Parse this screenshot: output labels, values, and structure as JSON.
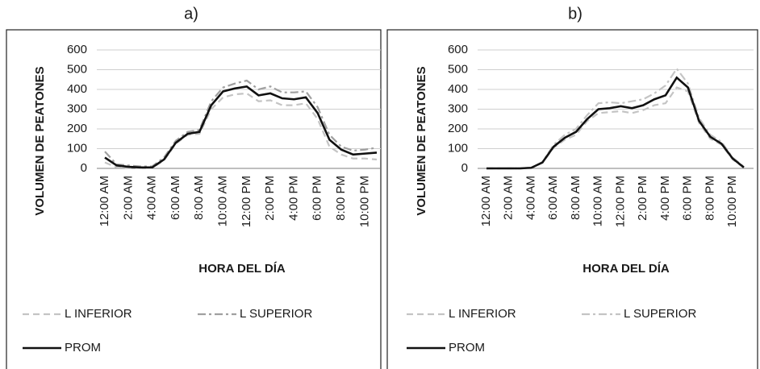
{
  "chart_data": [
    {
      "type": "line",
      "title": "a)",
      "x_label": "HORA DEL DÍA",
      "y_label": "VOLUMEN DE PEATONES",
      "categories": [
        "12:00 AM",
        null,
        "2:00 AM",
        null,
        "4:00 AM",
        null,
        "6:00 AM",
        null,
        "8:00 AM",
        null,
        "10:00 AM",
        null,
        "12:00 PM",
        null,
        "2:00 PM",
        null,
        "4:00 PM",
        null,
        "6:00 PM",
        null,
        "8:00 PM",
        null,
        "10:00 PM",
        null
      ],
      "series": [
        {
          "name": "L INFERIOR",
          "color": "#c4c4c4",
          "dash": "8,5",
          "values": [
            30,
            5,
            3,
            2,
            3,
            40,
            125,
            170,
            175,
            300,
            360,
            375,
            380,
            340,
            345,
            320,
            320,
            330,
            250,
            110,
            70,
            50,
            50,
            45
          ]
        },
        {
          "name": "L SUPERIOR",
          "color": "#a0a0a0",
          "dash": "10,4,3,4",
          "values": [
            85,
            20,
            15,
            10,
            10,
            55,
            140,
            185,
            195,
            340,
            410,
            430,
            445,
            400,
            415,
            385,
            385,
            390,
            310,
            170,
            110,
            90,
            95,
            105
          ]
        },
        {
          "name": "PROM",
          "color": "#111111",
          "dash": "none",
          "values": [
            55,
            15,
            8,
            5,
            5,
            45,
            130,
            175,
            185,
            320,
            390,
            405,
            415,
            370,
            380,
            355,
            350,
            360,
            280,
            145,
            95,
            70,
            75,
            80
          ]
        }
      ],
      "ylim": [
        0,
        600
      ],
      "yticks": [
        0,
        100,
        200,
        300,
        400,
        500,
        600
      ],
      "grid": true,
      "legend": "bottom"
    },
    {
      "type": "line",
      "title": "b)",
      "x_label": "HORA DEL DÍA",
      "y_label": "VOLUMEN DE PEATONES",
      "categories": [
        "12:00 AM",
        null,
        "2:00 AM",
        null,
        "4:00 AM",
        null,
        "6:00 AM",
        null,
        "8:00 AM",
        null,
        "10:00 AM",
        null,
        "12:00 PM",
        null,
        "2:00 PM",
        null,
        "4:00 PM",
        null,
        "6:00 PM",
        null,
        "8:00 PM",
        null,
        "10:00 PM",
        null
      ],
      "series": [
        {
          "name": "L INFERIOR",
          "color": "#c4c4c4",
          "dash": "8,5",
          "values": [
            0,
            0,
            0,
            0,
            2,
            28,
            105,
            145,
            170,
            240,
            280,
            285,
            290,
            280,
            295,
            320,
            330,
            410,
            390,
            230,
            150,
            120,
            45,
            3
          ]
        },
        {
          "name": "L SUPERIOR",
          "color": "#c4c4c4",
          "dash": "10,4,3,4",
          "values": [
            0,
            0,
            0,
            0,
            4,
            32,
            120,
            170,
            200,
            270,
            330,
            335,
            330,
            340,
            350,
            380,
            420,
            505,
            430,
            255,
            170,
            135,
            55,
            8
          ]
        },
        {
          "name": "PROM",
          "color": "#111111",
          "dash": "none",
          "values": [
            0,
            0,
            0,
            0,
            3,
            30,
            110,
            155,
            185,
            250,
            300,
            305,
            315,
            305,
            320,
            350,
            370,
            460,
            410,
            240,
            160,
            125,
            50,
            5
          ]
        }
      ],
      "ylim": [
        0,
        600
      ],
      "yticks": [
        0,
        100,
        200,
        300,
        400,
        500,
        600
      ],
      "grid": true,
      "legend": "bottom"
    }
  ]
}
